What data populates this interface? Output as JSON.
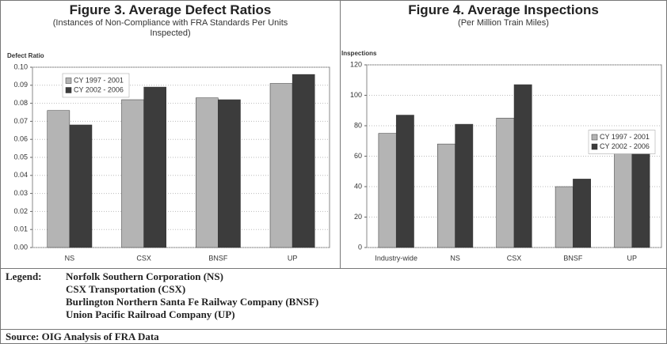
{
  "chart_data": [
    {
      "type": "bar",
      "title": "Figure 3.  Average Defect Ratios",
      "subtitle": "(Instances of Non-Compliance with FRA Standards Per Units Inspected)",
      "y_label": "Defect Ratio",
      "categories": [
        "NS",
        "CSX",
        "BNSF",
        "UP"
      ],
      "series": [
        {
          "name": "CY 1997 - 2001",
          "color": "#b4b4b4",
          "values": [
            0.076,
            0.082,
            0.083,
            0.091
          ]
        },
        {
          "name": "CY 2002 - 2006",
          "color": "#3c3c3c",
          "values": [
            0.068,
            0.089,
            0.082,
            0.096
          ]
        }
      ],
      "ylim": [
        0,
        0.1
      ],
      "yticks": [
        {
          "value": 0,
          "label": "0.00"
        },
        {
          "value": 0.01,
          "label": "0.01"
        },
        {
          "value": 0.02,
          "label": "0.02"
        },
        {
          "value": 0.03,
          "label": "0.03"
        },
        {
          "value": 0.04,
          "label": "0.04"
        },
        {
          "value": 0.05,
          "label": "0.05"
        },
        {
          "value": 0.06,
          "label": "0.06"
        },
        {
          "value": 0.07,
          "label": "0.07"
        },
        {
          "value": 0.08,
          "label": "0.08"
        },
        {
          "value": 0.09,
          "label": "0.09"
        },
        {
          "value": 0.1,
          "label": "0.10"
        }
      ],
      "grid": true,
      "legend": "upper left"
    },
    {
      "type": "bar",
      "title": "Figure 4.  Average Inspections",
      "subtitle": "(Per Million Train Miles)",
      "y_label": "Inspections",
      "categories": [
        "Industry-wide",
        "NS",
        "CSX",
        "BNSF",
        "UP"
      ],
      "series": [
        {
          "name": "CY 1997 - 2001",
          "color": "#b4b4b4",
          "values": [
            75,
            68,
            85,
            40,
            64
          ]
        },
        {
          "name": "CY 2002 - 2006",
          "color": "#3c3c3c",
          "values": [
            87,
            81,
            107,
            45,
            72
          ]
        }
      ],
      "ylim": [
        0,
        120
      ],
      "yticks": [
        0,
        20,
        40,
        60,
        80,
        100,
        120
      ],
      "grid": true,
      "legend": "right"
    }
  ],
  "legend_text": {
    "label": "Legend:",
    "items": [
      "Norfolk Southern Corporation (NS)",
      "CSX Transportation (CSX)",
      "Burlington Northern Santa Fe Railway Company (BNSF)",
      "Union Pacific Railroad Company (UP)"
    ]
  },
  "source": "Source: OIG Analysis of FRA Data"
}
